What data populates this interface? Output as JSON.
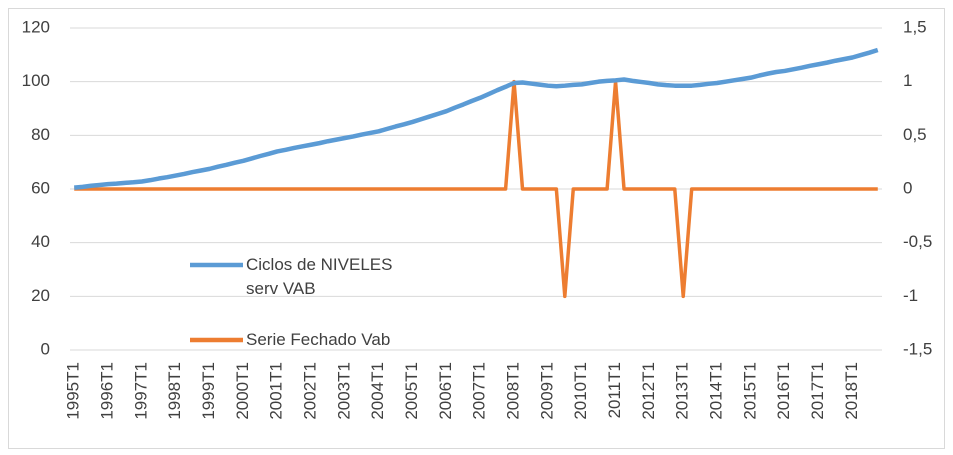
{
  "chart_data": {
    "type": "line",
    "categories": [
      "1995T1",
      null,
      null,
      null,
      "1996T1",
      null,
      null,
      null,
      "1997T1",
      null,
      null,
      null,
      "1998T1",
      null,
      null,
      null,
      "1999T1",
      null,
      null,
      null,
      "2000T1",
      null,
      null,
      null,
      "2001T1",
      null,
      null,
      null,
      "2002T1",
      null,
      null,
      null,
      "2003T1",
      null,
      null,
      null,
      "2004T1",
      null,
      null,
      null,
      "2005T1",
      null,
      null,
      null,
      "2006T1",
      null,
      null,
      null,
      "2007T1",
      null,
      null,
      null,
      "2008T1",
      null,
      null,
      null,
      "2009T1",
      null,
      null,
      null,
      "2010T1",
      null,
      null,
      null,
      "2011T1",
      null,
      null,
      null,
      "2012T1",
      null,
      null,
      null,
      "2013T1",
      null,
      null,
      null,
      "2014T1",
      null,
      null,
      null,
      "2015T1",
      null,
      null,
      null,
      "2016T1",
      null,
      null,
      null,
      "2017T1",
      null,
      null,
      null,
      "2018T1",
      null,
      null,
      null
    ],
    "series": [
      {
        "name": "Ciclos de NIVELES serv VAB",
        "color": "#5b9bd5",
        "axis": "y",
        "values": [
          60.5,
          60.8,
          61.2,
          61.5,
          61.8,
          62.0,
          62.3,
          62.5,
          62.8,
          63.3,
          63.9,
          64.4,
          65.0,
          65.6,
          66.3,
          66.9,
          67.5,
          68.3,
          69.0,
          69.8,
          70.5,
          71.4,
          72.3,
          73.1,
          74.0,
          74.6,
          75.3,
          75.9,
          76.5,
          77.1,
          77.8,
          78.4,
          79.0,
          79.6,
          80.3,
          80.9,
          81.5,
          82.4,
          83.3,
          84.1,
          85.0,
          86.0,
          87.0,
          88.0,
          89.0,
          90.3,
          91.5,
          92.8,
          94.0,
          95.4,
          96.8,
          98.1,
          99.5,
          99.7,
          99.3,
          98.9,
          98.5,
          98.3,
          98.5,
          98.8,
          99.0,
          99.5,
          100.0,
          100.3,
          100.5,
          100.8,
          100.3,
          99.9,
          99.5,
          99.0,
          98.7,
          98.5,
          98.5,
          98.5,
          98.8,
          99.2,
          99.5,
          100.0,
          100.5,
          101.0,
          101.5,
          102.3,
          103.0,
          103.6,
          104.0,
          104.6,
          105.2,
          105.9,
          106.5,
          107.1,
          107.8,
          108.4,
          109.0,
          109.9,
          110.8,
          111.8
        ]
      },
      {
        "name": "Serie Fechado Vab",
        "color": "#ed7d31",
        "axis": "y2",
        "values": [
          0,
          0,
          0,
          0,
          0,
          0,
          0,
          0,
          0,
          0,
          0,
          0,
          0,
          0,
          0,
          0,
          0,
          0,
          0,
          0,
          0,
          0,
          0,
          0,
          0,
          0,
          0,
          0,
          0,
          0,
          0,
          0,
          0,
          0,
          0,
          0,
          0,
          0,
          0,
          0,
          0,
          0,
          0,
          0,
          0,
          0,
          0,
          0,
          0,
          0,
          0,
          0,
          1,
          0,
          0,
          0,
          0,
          0,
          -1,
          0,
          0,
          0,
          0,
          0,
          1,
          0,
          0,
          0,
          0,
          0,
          0,
          0,
          -1,
          0,
          0,
          0,
          0,
          0,
          0,
          0,
          0,
          0,
          0,
          0,
          0,
          0,
          0,
          0,
          0,
          0,
          0,
          0,
          0,
          0,
          0,
          0
        ]
      }
    ],
    "ylim": [
      0,
      120
    ],
    "yticks": [
      0,
      20,
      40,
      60,
      80,
      100,
      120
    ],
    "y2lim": [
      -1.5,
      1.5
    ],
    "y2ticks": [
      {
        "value": -1.5,
        "label": "-1,5"
      },
      -1,
      {
        "value": -0.5,
        "label": "-0,5"
      },
      0,
      {
        "value": 0.5,
        "label": "0,5"
      },
      1,
      {
        "value": 1.5,
        "label": "1,5"
      }
    ],
    "grid": true
  }
}
